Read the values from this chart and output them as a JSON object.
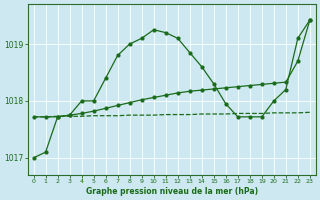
{
  "bg_color": "#cde8f0",
  "grid_color": "#ffffff",
  "line_color": "#1a6b1a",
  "title": "Graphe pression niveau de la mer (hPa)",
  "ylim": [
    1016.7,
    1019.7
  ],
  "xlim": [
    -0.5,
    23.5
  ],
  "yticks": [
    1017,
    1018,
    1019
  ],
  "xticks": [
    0,
    1,
    2,
    3,
    4,
    5,
    6,
    7,
    8,
    9,
    10,
    11,
    12,
    13,
    14,
    15,
    16,
    17,
    18,
    19,
    20,
    21,
    22,
    23
  ],
  "line1_x": [
    0,
    1,
    2,
    3,
    4,
    5,
    6,
    7,
    8,
    9,
    10,
    11,
    12,
    13,
    14,
    15,
    16,
    17,
    18,
    19,
    20,
    21,
    22,
    23
  ],
  "line1_y": [
    1017.72,
    1017.72,
    1017.73,
    1017.73,
    1017.73,
    1017.74,
    1017.74,
    1017.74,
    1017.75,
    1017.75,
    1017.75,
    1017.76,
    1017.76,
    1017.76,
    1017.77,
    1017.77,
    1017.77,
    1017.78,
    1017.78,
    1017.78,
    1017.79,
    1017.79,
    1017.79,
    1017.8
  ],
  "line2_x": [
    0,
    1,
    2,
    3,
    4,
    5,
    6,
    7,
    8,
    9,
    10,
    11,
    12,
    13,
    14,
    15,
    16,
    17,
    18,
    19,
    20,
    21,
    22,
    23
  ],
  "line2_y": [
    1017.0,
    1017.1,
    1017.72,
    1017.75,
    1018.0,
    1018.0,
    1018.4,
    1018.8,
    1019.0,
    1019.1,
    1019.25,
    1019.2,
    1019.1,
    1018.85,
    1018.6,
    1018.3,
    1017.95,
    1017.72,
    1017.72,
    1017.72,
    1018.0,
    1018.2,
    1019.1,
    1019.42
  ],
  "line3_x": [
    0,
    1,
    2,
    3,
    4,
    5,
    6,
    7,
    8,
    9,
    10,
    11,
    12,
    13,
    14,
    15,
    16,
    17,
    18,
    19,
    20,
    21,
    22,
    23
  ],
  "line3_y": [
    1017.72,
    1017.72,
    1017.72,
    1017.75,
    1017.78,
    1017.82,
    1017.87,
    1017.92,
    1017.97,
    1018.02,
    1018.06,
    1018.1,
    1018.14,
    1018.17,
    1018.19,
    1018.21,
    1018.23,
    1018.25,
    1018.27,
    1018.29,
    1018.31,
    1018.33,
    1018.7,
    1019.42
  ],
  "marker_size": 2.0,
  "linewidth": 0.9
}
